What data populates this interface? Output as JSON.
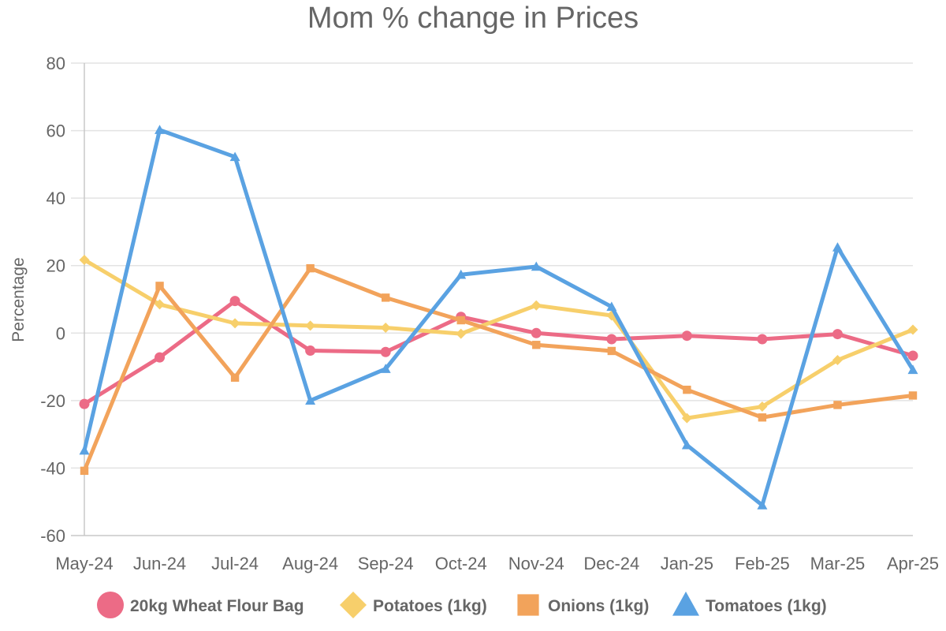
{
  "chart_data": {
    "type": "line",
    "title": "Mom % change in Prices",
    "xlabel": "",
    "ylabel": "Percentage",
    "categories": [
      "May-24",
      "Jun-24",
      "Jul-24",
      "Aug-24",
      "Sep-24",
      "Oct-24",
      "Nov-24",
      "Dec-24",
      "Jan-25",
      "Feb-25",
      "Mar-25",
      "Apr-25"
    ],
    "ylim": [
      -60,
      80
    ],
    "yticks": [
      -60,
      -40,
      -20,
      0,
      20,
      40,
      60,
      80
    ],
    "grid": true,
    "legend_position": "bottom",
    "series": [
      {
        "name": "20kg Wheat Flour Bag",
        "color": "#ec6b86",
        "marker": "circle",
        "values": [
          -21,
          -7.2,
          9.5,
          -5.2,
          -5.6,
          4.8,
          0,
          -1.8,
          -0.8,
          -1.8,
          -0.3,
          -6.7
        ]
      },
      {
        "name": "Potatoes (1kg)",
        "color": "#f7cf6b",
        "marker": "diamond",
        "values": [
          21.7,
          8.5,
          2.9,
          2.2,
          1.6,
          -0.2,
          8.2,
          5.2,
          -25.2,
          -21.8,
          -8,
          1
        ]
      },
      {
        "name": "Onions (1kg)",
        "color": "#f2a35b",
        "marker": "square",
        "values": [
          -40.8,
          14,
          -13.2,
          19.2,
          10.5,
          3.8,
          -3.5,
          -5.3,
          -16.8,
          -25,
          -21.3,
          -18.5
        ]
      },
      {
        "name": "Tomatoes (1kg)",
        "color": "#5aa2e2",
        "marker": "triangle",
        "values": [
          -34.8,
          60.2,
          52.2,
          -20,
          -10.6,
          17.3,
          19.7,
          7.8,
          -33.2,
          -51,
          25.4,
          -10.9
        ]
      }
    ]
  }
}
